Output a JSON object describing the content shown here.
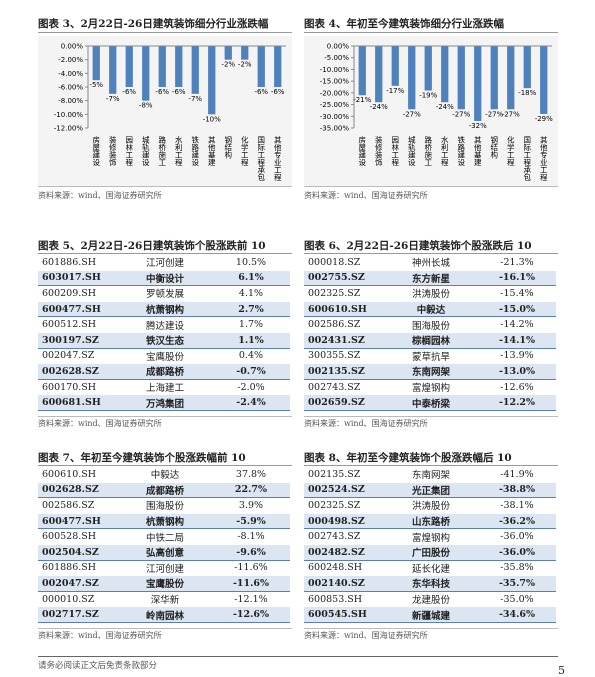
{
  "chart_data": [
    {
      "type": "bar",
      "title": "图表 3、2月22日-26日建筑装饰细分行业涨跌幅",
      "categories": [
        "房屋建设",
        "装修装饰",
        "园林工程",
        "城轨建设",
        "路桥施工",
        "水利工程",
        "铁路建设",
        "其他基建",
        "钢结构",
        "化学工程",
        "国际工程承包",
        "其他专业工程"
      ],
      "values": [
        -5,
        -7,
        -6,
        -8,
        -6,
        -6,
        -7,
        -10,
        -2,
        -2,
        -6,
        -6
      ],
      "value_labels": [
        "-5%",
        "-7%",
        "-6%",
        "-8%",
        "-6%",
        "-6%",
        "-7%",
        "-10%",
        "-2%",
        "-2%",
        "-6%",
        "-6%"
      ],
      "color": "#4f81bd",
      "ylim": [
        0,
        -12
      ],
      "yticks": [
        {
          "value": 0,
          "label": "0.00%"
        },
        {
          "value": -2,
          "label": "-2.00%"
        },
        {
          "value": -4,
          "label": "-4.00%"
        },
        {
          "value": -6,
          "label": "-6.00%"
        },
        {
          "value": -8,
          "label": "-8.00%"
        },
        {
          "value": -10,
          "label": "-10.00%"
        },
        {
          "value": -12,
          "label": "-12.00%"
        }
      ],
      "source": "资料来源：wind、国海证券研究所"
    },
    {
      "type": "bar",
      "title": "图表 4、年初至今建筑装饰细分行业涨跌幅",
      "categories": [
        "房屋建设",
        "装修装饰",
        "园林工程",
        "城轨建设",
        "路桥施工",
        "水利工程",
        "铁路建设",
        "其他基建",
        "钢结构",
        "化学工程",
        "国际工程承包",
        "其他专业工程"
      ],
      "values": [
        -21,
        -24,
        -17,
        -27,
        -19,
        -24,
        -27,
        -32,
        -27,
        -27,
        -18,
        -29
      ],
      "value_labels": [
        "-21%",
        "-24%",
        "-17%",
        "-27%",
        "-19%",
        "-24%",
        "-27%",
        "-32%",
        "-27%",
        "-27%",
        "-18%",
        "-29%"
      ],
      "color": "#4f81bd",
      "ylim": [
        0,
        -35
      ],
      "yticks": [
        {
          "value": 0,
          "label": "0.00%"
        },
        {
          "value": -5,
          "label": "-5.00%"
        },
        {
          "value": -10,
          "label": "-10.00%"
        },
        {
          "value": -15,
          "label": "-15.00%"
        },
        {
          "value": -20,
          "label": "-20.00%"
        },
        {
          "value": -25,
          "label": "-25.00%"
        },
        {
          "value": -30,
          "label": "-30.00%"
        },
        {
          "value": -35,
          "label": "-35.00%"
        }
      ],
      "source": "资料来源：wind、国海证券研究所"
    }
  ],
  "tables": [
    {
      "title": "图表 5、2月22日-26日建筑装饰个股涨跌前 10",
      "rows": [
        [
          "601886.SH",
          "江河创建",
          "10.5%"
        ],
        [
          "603017.SH",
          "中衡设计",
          "6.1%"
        ],
        [
          "600209.SH",
          "罗顿发展",
          "4.1%"
        ],
        [
          "600477.SH",
          "杭萧钢构",
          "2.7%"
        ],
        [
          "600512.SH",
          "腾达建设",
          "1.7%"
        ],
        [
          "300197.SZ",
          "铁汉生态",
          "1.1%"
        ],
        [
          "002047.SZ",
          "宝鹰股份",
          "0.4%"
        ],
        [
          "002628.SZ",
          "成都路桥",
          "-0.7%"
        ],
        [
          "600170.SH",
          "上海建工",
          "-2.0%"
        ],
        [
          "600681.SH",
          "万鸿集团",
          "-2.4%"
        ]
      ],
      "source": "资料来源：wind、国海证券研究所"
    },
    {
      "title": "图表 6、2月22日-26日建筑装饰个股涨跌后 10",
      "rows": [
        [
          "000018.SZ",
          "神州长城",
          "-21.3%"
        ],
        [
          "002755.SZ",
          "东方新星",
          "-16.1%"
        ],
        [
          "002325.SZ",
          "洪涛股份",
          "-15.4%"
        ],
        [
          "600610.SH",
          "中毅达",
          "-15.0%"
        ],
        [
          "002586.SZ",
          "围海股份",
          "-14.2%"
        ],
        [
          "002431.SZ",
          "棕榈园林",
          "-14.1%"
        ],
        [
          "300355.SZ",
          "蒙草抗旱",
          "-13.9%"
        ],
        [
          "002135.SZ",
          "东南网架",
          "-13.0%"
        ],
        [
          "002743.SZ",
          "富煌钢构",
          "-12.6%"
        ],
        [
          "002659.SZ",
          "中泰桥梁",
          "-12.2%"
        ]
      ],
      "source": "资料来源：wind、国海证券研究所"
    },
    {
      "title": "图表 7、年初至今建筑装饰个股涨跌幅前 10",
      "rows": [
        [
          "600610.SH",
          "中毅达",
          "37.8%"
        ],
        [
          "002628.SZ",
          "成都路桥",
          "22.7%"
        ],
        [
          "002586.SZ",
          "围海股份",
          "3.9%"
        ],
        [
          "600477.SH",
          "杭萧钢构",
          "-5.9%"
        ],
        [
          "600528.SH",
          "中铁二局",
          "-8.1%"
        ],
        [
          "002504.SZ",
          "弘高创意",
          "-9.6%"
        ],
        [
          "601886.SH",
          "江河创建",
          "-11.6%"
        ],
        [
          "002047.SZ",
          "宝鹰股份",
          "-11.6%"
        ],
        [
          "000010.SZ",
          "深华新",
          "-12.1%"
        ],
        [
          "002717.SZ",
          "岭南园林",
          "-12.6%"
        ]
      ],
      "source": "资料来源：wind、国海证券研究所"
    },
    {
      "title": "图表 8、年初至今建筑装饰个股涨跌幅后 10",
      "rows": [
        [
          "002135.SZ",
          "东南网架",
          "-41.9%"
        ],
        [
          "002524.SZ",
          "光正集团",
          "-38.8%"
        ],
        [
          "002325.SZ",
          "洪涛股份",
          "-38.1%"
        ],
        [
          "000498.SZ",
          "山东路桥",
          "-36.2%"
        ],
        [
          "002743.SZ",
          "富煌钢构",
          "-36.0%"
        ],
        [
          "002482.SZ",
          "广田股份",
          "-36.0%"
        ],
        [
          "600248.SH",
          "延长化建",
          "-35.8%"
        ],
        [
          "002140.SZ",
          "东华科技",
          "-35.7%"
        ],
        [
          "600853.SH",
          "龙建股份",
          "-35.0%"
        ],
        [
          "600545.SH",
          "新疆城建",
          "-34.6%"
        ]
      ],
      "source": "资料来源：wind、国海证券研究所"
    }
  ],
  "footer": {
    "disclaimer": "请务必阅读正文后免责条款部分",
    "page": "5"
  }
}
